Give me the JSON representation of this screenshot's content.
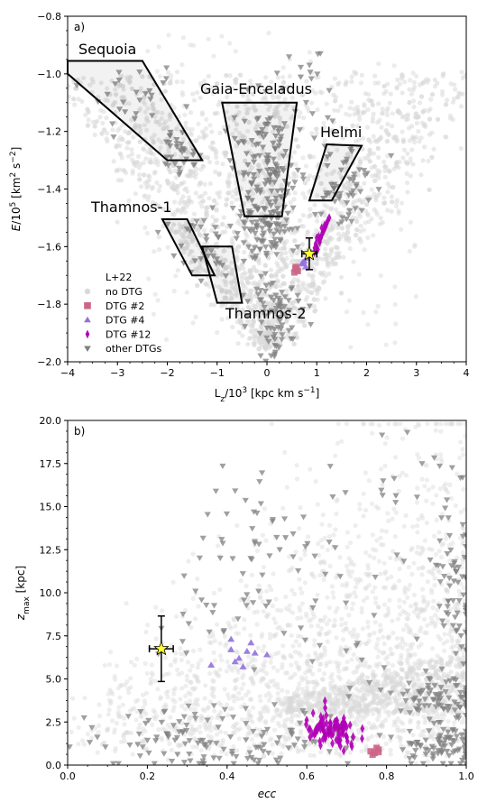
{
  "chart_data": [
    {
      "type": "scatter",
      "panel_label": "a)",
      "xlabel": "L_z/10^3 [kpc km s^-1]",
      "ylabel": "E/10^5 [km^2 s^-2]",
      "xlim": [
        -4,
        4
      ],
      "ylim": [
        -2.0,
        -0.8
      ],
      "xticks": [
        -4,
        -3,
        -2,
        -1,
        0,
        1,
        2,
        3,
        4
      ],
      "xtick_labels": [
        "−4",
        "−3",
        "−2",
        "−1",
        "0",
        "1",
        "2",
        "3",
        "4"
      ],
      "yticks": [
        -2.0,
        -1.8,
        -1.6,
        -1.4,
        -1.2,
        -1.0,
        -0.8
      ],
      "ytick_labels": [
        "−2.0",
        "−1.8",
        "−1.6",
        "−1.4",
        "−1.2",
        "−1.0",
        "−0.8"
      ],
      "legend": {
        "title": "L+22",
        "location": "lower-left",
        "entries": [
          {
            "label": "no DTG",
            "marker": "circle",
            "color": "#d9d9d9"
          },
          {
            "label": "DTG #2",
            "marker": "square",
            "color": "#cc6688"
          },
          {
            "label": "DTG #4",
            "marker": "triangle-up",
            "color": "#9370db"
          },
          {
            "label": "DTG #12",
            "marker": "thin-diamond",
            "color": "#b000b5"
          },
          {
            "label": "other DTGs",
            "marker": "triangle-down",
            "color": "#808080"
          }
        ]
      },
      "regions": [
        {
          "name": "Sequoia",
          "polygon": [
            [
              -4.0,
              -0.955
            ],
            [
              -2.5,
              -0.955
            ],
            [
              -1.3,
              -1.3
            ],
            [
              -2.0,
              -1.3
            ],
            [
              -4.0,
              -1.0
            ]
          ]
        },
        {
          "name": "Gaia-Enceladus",
          "polygon": [
            [
              -0.9,
              -1.1
            ],
            [
              0.6,
              -1.1
            ],
            [
              0.3,
              -1.495
            ],
            [
              -0.45,
              -1.495
            ]
          ]
        },
        {
          "name": "Helmi",
          "polygon": [
            [
              1.2,
              -1.245
            ],
            [
              1.9,
              -1.25
            ],
            [
              1.3,
              -1.44
            ],
            [
              0.85,
              -1.44
            ]
          ]
        },
        {
          "name": "Thamnos-1",
          "polygon": [
            [
              -2.1,
              -1.505
            ],
            [
              -1.6,
              -1.505
            ],
            [
              -1.05,
              -1.7
            ],
            [
              -1.5,
              -1.7
            ]
          ]
        },
        {
          "name": "Thamnos-2",
          "polygon": [
            [
              -1.3,
              -1.6
            ],
            [
              -0.7,
              -1.6
            ],
            [
              -0.5,
              -1.795
            ],
            [
              -1.0,
              -1.795
            ]
          ]
        }
      ],
      "series": [
        {
          "name": "no DTG",
          "clouds": [
            {
              "kind": "v-band",
              "note_values": [
                [
                  0,
                  -1.95
                ],
                [
                  2.0,
                  -1.45
                ],
                [
                  -1.8,
                  -1.4
                ],
                [
                  0,
                  -1.2
                ]
              ]
            },
            {
              "kind": "scatter-sky",
              "x_range": [
                -2.5,
                3.0
              ],
              "y_range": [
                -1.95,
                -0.85
              ]
            }
          ]
        },
        {
          "name": "DTG #2",
          "points": [
            [
              0.55,
              -1.69
            ],
            [
              0.6,
              -1.68
            ],
            [
              0.58,
              -1.67
            ],
            [
              0.62,
              -1.685
            ],
            [
              0.57,
              -1.675
            ]
          ]
        },
        {
          "name": "DTG #4",
          "points": [
            [
              0.75,
              -1.65
            ],
            [
              0.8,
              -1.64
            ],
            [
              0.85,
              -1.63
            ],
            [
              0.7,
              -1.66
            ],
            [
              0.78,
              -1.67
            ],
            [
              0.9,
              -1.62
            ],
            [
              0.72,
              -1.655
            ]
          ]
        },
        {
          "name": "DTG #12",
          "points": [
            [
              0.95,
              -1.62
            ],
            [
              1.0,
              -1.6
            ],
            [
              1.05,
              -1.58
            ],
            [
              1.1,
              -1.56
            ],
            [
              1.15,
              -1.54
            ],
            [
              1.2,
              -1.52
            ],
            [
              1.25,
              -1.5
            ],
            [
              1.02,
              -1.61
            ],
            [
              1.08,
              -1.57
            ],
            [
              1.12,
              -1.55
            ],
            [
              1.18,
              -1.53
            ],
            [
              0.98,
              -1.59
            ],
            [
              1.06,
              -1.585
            ],
            [
              1.14,
              -1.545
            ],
            [
              1.22,
              -1.51
            ],
            [
              1.0,
              -1.57
            ],
            [
              1.1,
              -1.535
            ],
            [
              0.96,
              -1.605
            ],
            [
              1.04,
              -1.565
            ],
            [
              1.16,
              -1.525
            ]
          ]
        },
        {
          "name": "other DTGs",
          "clusters": [
            {
              "center": [
                -1.8,
                -1.27
              ],
              "spread": [
                0.25,
                0.04
              ],
              "n": 30
            },
            {
              "center": [
                -2.6,
                -1.1
              ],
              "spread": [
                0.4,
                0.05
              ],
              "n": 25
            },
            {
              "center": [
                0.0,
                -1.35
              ],
              "spread": [
                0.35,
                0.12
              ],
              "n": 140
            },
            {
              "center": [
                -0.05,
                -1.55
              ],
              "spread": [
                0.3,
                0.05
              ],
              "n": 70
            },
            {
              "center": [
                0.2,
                -1.8
              ],
              "spread": [
                0.25,
                0.06
              ],
              "n": 60
            },
            {
              "center": [
                1.5,
                -1.38
              ],
              "spread": [
                0.3,
                0.08
              ],
              "n": 55
            },
            {
              "center": [
                -1.4,
                -1.6
              ],
              "spread": [
                0.4,
                0.08
              ],
              "n": 35
            },
            {
              "center": [
                0.1,
                -1.95
              ],
              "spread": [
                0.15,
                0.03
              ],
              "n": 15
            },
            {
              "center": [
                0.8,
                -1.05
              ],
              "spread": [
                0.4,
                0.1
              ],
              "n": 20
            }
          ]
        }
      ],
      "highlight": {
        "marker": "star",
        "color": "#ffff33",
        "x": 0.85,
        "y": -1.625,
        "xerr": 0.15,
        "yerr": 0.055
      }
    },
    {
      "type": "scatter",
      "panel_label": "b)",
      "xlabel": "ecc",
      "ylabel": "z_max [kpc]",
      "xlim": [
        0.0,
        1.0
      ],
      "ylim": [
        0.0,
        20.0
      ],
      "xticks": [
        0.0,
        0.2,
        0.4,
        0.6,
        0.8,
        1.0
      ],
      "xtick_labels": [
        "0.0",
        "0.2",
        "0.4",
        "0.6",
        "0.8",
        "1.0"
      ],
      "yticks": [
        0.0,
        2.5,
        5.0,
        7.5,
        10.0,
        12.5,
        15.0,
        17.5,
        20.0
      ],
      "ytick_labels": [
        "0.0",
        "2.5",
        "5.0",
        "7.5",
        "10.0",
        "12.5",
        "15.0",
        "17.5",
        "20.0"
      ],
      "series": [
        {
          "name": "DTG #2",
          "points": [
            [
              0.76,
              0.8
            ],
            [
              0.77,
              0.7
            ],
            [
              0.78,
              0.9
            ],
            [
              0.765,
              0.6
            ],
            [
              0.775,
              1.0
            ],
            [
              0.78,
              0.75
            ]
          ]
        },
        {
          "name": "DTG #4",
          "points": [
            [
              0.36,
              5.8
            ],
            [
              0.41,
              7.3
            ],
            [
              0.41,
              6.7
            ],
            [
              0.43,
              6.2
            ],
            [
              0.45,
              6.6
            ],
            [
              0.46,
              7.1
            ],
            [
              0.47,
              6.5
            ],
            [
              0.5,
              6.4
            ],
            [
              0.42,
              6.0
            ],
            [
              0.44,
              5.7
            ]
          ]
        },
        {
          "name": "DTG #12",
          "clusters": [
            {
              "center": [
                0.66,
                1.9
              ],
              "spread": [
                0.035,
                0.55
              ],
              "n": 90
            }
          ]
        },
        {
          "name": "other DTGs",
          "clusters": [
            {
              "center": [
                0.4,
                1.5
              ],
              "spread": [
                0.18,
                0.9
              ],
              "n": 120
            },
            {
              "center": [
                0.93,
                1.2
              ],
              "spread": [
                0.05,
                0.6
              ],
              "n": 80
            },
            {
              "center": [
                0.93,
                3.8
              ],
              "spread": [
                0.05,
                0.7
              ],
              "n": 70
            },
            {
              "center": [
                0.97,
                9.0
              ],
              "spread": [
                0.025,
                4.0
              ],
              "n": 80
            },
            {
              "center": [
                0.45,
                14.0
              ],
              "spread": [
                0.06,
                1.8
              ],
              "n": 25
            },
            {
              "center": [
                0.35,
                9.0
              ],
              "spread": [
                0.08,
                2.5
              ],
              "n": 25
            },
            {
              "center": [
                0.6,
                11.5
              ],
              "spread": [
                0.08,
                1.5
              ],
              "n": 20
            },
            {
              "center": [
                0.8,
                15.0
              ],
              "spread": [
                0.1,
                2.5
              ],
              "n": 20
            },
            {
              "center": [
                0.75,
                6.0
              ],
              "spread": [
                0.1,
                2.0
              ],
              "n": 20
            }
          ]
        },
        {
          "name": "no DTG",
          "clouds": [
            {
              "kind": "broad",
              "x_range": [
                0.0,
                1.0
              ],
              "y_range": [
                0.0,
                19.5
              ]
            }
          ]
        }
      ],
      "highlight": {
        "marker": "star",
        "color": "#ffff33",
        "x": 0.235,
        "y": 6.75,
        "xerr": 0.03,
        "yerr": 1.9
      }
    }
  ]
}
